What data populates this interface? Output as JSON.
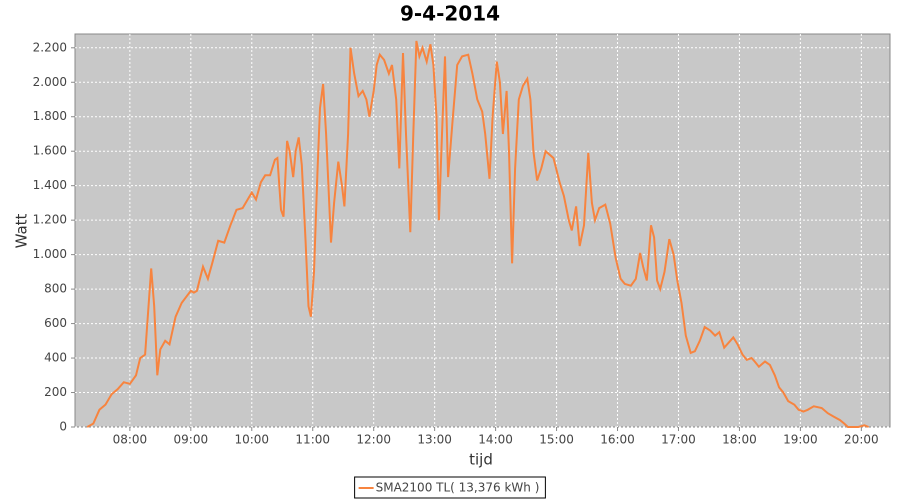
{
  "chart_data": {
    "type": "line",
    "title": "9-4-2014",
    "x_label": "tijd",
    "y_label": "Watt",
    "xlim": [
      7.1,
      20.47
    ],
    "ylim": [
      0,
      2280
    ],
    "grid": true,
    "legend": "bottom",
    "xticks": [
      {
        "value": 8,
        "label": "08:00"
      },
      {
        "value": 9,
        "label": "09:00"
      },
      {
        "value": 10,
        "label": "10:00"
      },
      {
        "value": 11,
        "label": "11:00"
      },
      {
        "value": 12,
        "label": "12:00"
      },
      {
        "value": 13,
        "label": "13:00"
      },
      {
        "value": 14,
        "label": "14:00"
      },
      {
        "value": 15,
        "label": "15:00"
      },
      {
        "value": 16,
        "label": "16:00"
      },
      {
        "value": 17,
        "label": "17:00"
      },
      {
        "value": 18,
        "label": "18:00"
      },
      {
        "value": 19,
        "label": "19:00"
      },
      {
        "value": 20,
        "label": "20:00"
      }
    ],
    "yticks": [
      0,
      200,
      400,
      600,
      800,
      {
        "value": 1000,
        "label": "1.000"
      },
      {
        "value": 1200,
        "label": "1.200"
      },
      {
        "value": 1400,
        "label": "1.400"
      },
      {
        "value": 1600,
        "label": "1.600"
      },
      {
        "value": 1800,
        "label": "1.800"
      },
      {
        "value": 2000,
        "label": "2.000"
      },
      {
        "value": 2200,
        "label": "2.200"
      }
    ],
    "x": [
      7.3,
      7.4,
      7.5,
      7.6,
      7.7,
      7.8,
      7.9,
      8.0,
      8.1,
      8.17,
      8.25,
      8.35,
      8.4,
      8.45,
      8.5,
      8.58,
      8.65,
      8.75,
      8.85,
      9.0,
      9.05,
      9.1,
      9.2,
      9.28,
      9.35,
      9.45,
      9.55,
      9.65,
      9.75,
      9.85,
      9.95,
      10.0,
      10.07,
      10.15,
      10.22,
      10.3,
      10.38,
      10.42,
      10.48,
      10.52,
      10.58,
      10.62,
      10.68,
      10.72,
      10.77,
      10.82,
      10.88,
      10.93,
      10.97,
      11.02,
      11.08,
      11.12,
      11.17,
      11.22,
      11.3,
      11.35,
      11.42,
      11.48,
      11.52,
      11.58,
      11.62,
      11.68,
      11.75,
      11.82,
      11.88,
      11.93,
      12.0,
      12.05,
      12.1,
      12.17,
      12.25,
      12.3,
      12.37,
      12.42,
      12.48,
      12.53,
      12.6,
      12.65,
      12.7,
      12.75,
      12.8,
      12.87,
      12.93,
      12.98,
      13.03,
      13.07,
      13.12,
      13.17,
      13.22,
      13.3,
      13.37,
      13.45,
      13.55,
      13.62,
      13.7,
      13.78,
      13.83,
      13.9,
      13.95,
      14.02,
      14.07,
      14.12,
      14.18,
      14.22,
      14.27,
      14.32,
      14.38,
      14.45,
      14.52,
      14.57,
      14.62,
      14.68,
      14.75,
      14.82,
      14.95,
      15.05,
      15.12,
      15.2,
      15.25,
      15.32,
      15.38,
      15.45,
      15.52,
      15.58,
      15.63,
      15.7,
      15.8,
      15.88,
      15.97,
      16.05,
      16.12,
      16.22,
      16.3,
      16.37,
      16.42,
      16.48,
      16.55,
      16.6,
      16.65,
      16.7,
      16.77,
      16.85,
      16.92,
      16.98,
      17.05,
      17.12,
      17.2,
      17.27,
      17.35,
      17.43,
      17.52,
      17.6,
      17.67,
      17.75,
      17.85,
      17.9,
      17.97,
      18.05,
      18.12,
      18.2,
      18.25,
      18.32,
      18.42,
      18.5,
      18.58,
      18.65,
      18.72,
      18.8,
      18.9,
      18.97,
      19.05,
      19.12,
      19.22,
      19.35,
      19.45,
      19.55,
      19.65,
      19.72,
      19.78,
      19.95,
      20.05,
      20.12
    ],
    "series": [
      {
        "name": "SMA2100 TL( 13,376 kWh )",
        "color": "#f7843f",
        "values": [
          0,
          20,
          100,
          130,
          190,
          220,
          260,
          250,
          300,
          400,
          420,
          920,
          700,
          300,
          450,
          500,
          480,
          640,
          720,
          790,
          780,
          790,
          930,
          860,
          950,
          1080,
          1070,
          1170,
          1260,
          1270,
          1330,
          1360,
          1320,
          1420,
          1460,
          1460,
          1550,
          1560,
          1260,
          1220,
          1660,
          1600,
          1450,
          1600,
          1680,
          1520,
          1100,
          700,
          640,
          900,
          1500,
          1850,
          1990,
          1700,
          1070,
          1300,
          1540,
          1400,
          1280,
          1700,
          2200,
          2050,
          1920,
          1950,
          1900,
          1800,
          1950,
          2100,
          2160,
          2130,
          2050,
          2100,
          1900,
          1500,
          2170,
          1700,
          1130,
          1700,
          2240,
          2150,
          2200,
          2120,
          2220,
          2100,
          1800,
          1200,
          1700,
          2150,
          1450,
          1800,
          2100,
          2150,
          2160,
          2050,
          1900,
          1830,
          1700,
          1440,
          1800,
          2120,
          2000,
          1700,
          1950,
          1600,
          950,
          1500,
          1900,
          1980,
          2020,
          1900,
          1600,
          1430,
          1500,
          1600,
          1560,
          1420,
          1340,
          1200,
          1140,
          1280,
          1050,
          1170,
          1590,
          1300,
          1200,
          1270,
          1290,
          1180,
          980,
          860,
          830,
          820,
          860,
          1010,
          930,
          850,
          1170,
          1100,
          850,
          800,
          900,
          1090,
          1000,
          850,
          720,
          530,
          430,
          440,
          500,
          580,
          560,
          530,
          550,
          460,
          500,
          520,
          480,
          420,
          390,
          400,
          380,
          350,
          380,
          360,
          300,
          230,
          200,
          150,
          130,
          100,
          90,
          100,
          120,
          110,
          80,
          60,
          40,
          20,
          0,
          0,
          10,
          0
        ]
      }
    ]
  }
}
